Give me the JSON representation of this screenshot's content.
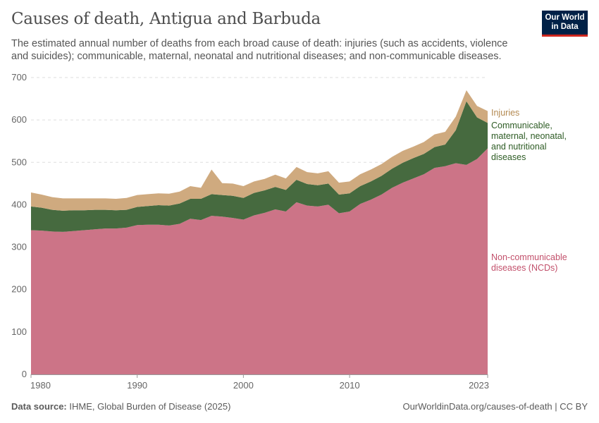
{
  "header": {
    "title": "Causes of death, Antigua and Barbuda",
    "subtitle": "The estimated annual number of deaths from each broad cause of death: injuries (such as accidents, violence and suicides); communicable, maternal, neonatal and nutritional diseases; and non-communicable diseases.",
    "logo_line1": "Our World",
    "logo_line2": "in Data"
  },
  "footer": {
    "source_label": "Data source:",
    "source_text": "IHME, Global Burden of Disease (2025)",
    "url": "OurWorldinData.org/causes-of-death | CC BY"
  },
  "colors": {
    "ncd": "#cc7487",
    "communicable": "#466a3f",
    "injuries": "#cfaa7f",
    "ncd_label": "#c2506b",
    "communicable_label": "#2e5c25",
    "injuries_label": "#b48a52"
  },
  "chart_data": {
    "type": "area",
    "stacked": true,
    "x": [
      1980,
      1981,
      1982,
      1983,
      1984,
      1985,
      1986,
      1987,
      1988,
      1989,
      1990,
      1991,
      1992,
      1993,
      1994,
      1995,
      1996,
      1997,
      1998,
      1999,
      2000,
      2001,
      2002,
      2003,
      2004,
      2005,
      2006,
      2007,
      2008,
      2009,
      2010,
      2011,
      2012,
      2013,
      2014,
      2015,
      2016,
      2017,
      2018,
      2019,
      2020,
      2021,
      2022,
      2023
    ],
    "series": [
      {
        "key": "ncd",
        "name": "Non-communicable diseases (NCDs)",
        "label_lines": [
          "Non-communicable",
          "diseases (NCDs)"
        ],
        "values": [
          340,
          339,
          337,
          336,
          338,
          340,
          342,
          344,
          344,
          346,
          352,
          353,
          353,
          351,
          355,
          367,
          364,
          374,
          372,
          369,
          365,
          375,
          381,
          389,
          384,
          406,
          398,
          396,
          400,
          380,
          384,
          402,
          412,
          424,
          440,
          452,
          462,
          472,
          487,
          491,
          498,
          494,
          508,
          533
        ]
      },
      {
        "key": "communicable",
        "name": "Communicable, maternal, neonatal, and nutritional diseases",
        "label_lines": [
          "Communicable,",
          "maternal, neonatal,",
          "and nutritional",
          "diseases"
        ],
        "values": [
          56,
          54,
          51,
          50,
          49,
          47,
          46,
          44,
          43,
          42,
          43,
          44,
          46,
          47,
          48,
          47,
          50,
          51,
          51,
          52,
          51,
          53,
          53,
          53,
          51,
          53,
          51,
          50,
          50,
          44,
          43,
          42,
          43,
          44,
          45,
          47,
          48,
          48,
          49,
          51,
          78,
          150,
          98,
          60
        ]
      },
      {
        "key": "injuries",
        "name": "Injuries",
        "label_lines": [
          "Injuries"
        ],
        "values": [
          33,
          31,
          30,
          29,
          28,
          28,
          27,
          27,
          27,
          28,
          28,
          28,
          28,
          28,
          28,
          30,
          26,
          58,
          28,
          29,
          28,
          27,
          27,
          29,
          27,
          30,
          28,
          28,
          29,
          28,
          28,
          28,
          28,
          28,
          28,
          28,
          27,
          28,
          30,
          30,
          32,
          26,
          27,
          28
        ]
      }
    ],
    "x_ticks": [
      1980,
      1990,
      2000,
      2010,
      2023
    ],
    "y_ticks": [
      0,
      100,
      200,
      300,
      400,
      500,
      600,
      700
    ],
    "xlim": [
      1980,
      2023
    ],
    "ylim": [
      0,
      700
    ],
    "grid": "horizontal-dashed",
    "legend": "right-inline"
  }
}
